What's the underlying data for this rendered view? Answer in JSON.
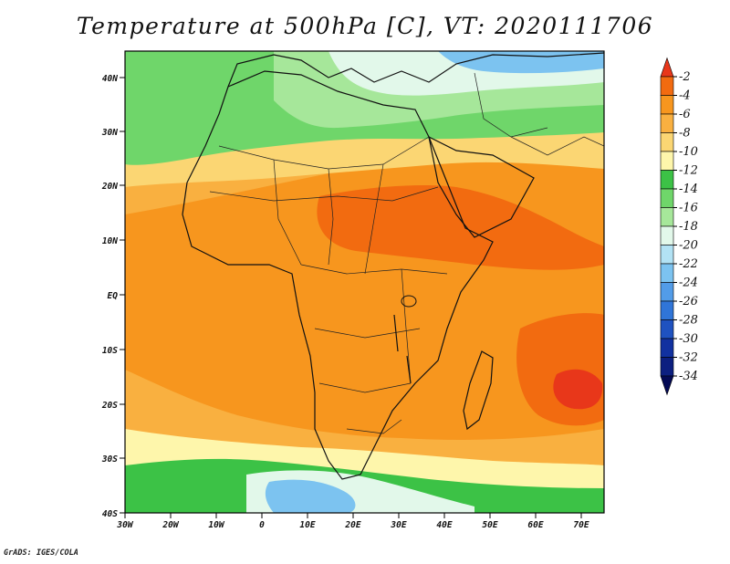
{
  "title": "Temperature at 500hPa [C], VT: 2020111706",
  "credit": "GrADS: IGES/COLA",
  "lat_ticks": [
    "40N",
    "30N",
    "20N",
    "10N",
    "EQ",
    "10S",
    "20S",
    "30S",
    "40S"
  ],
  "lon_ticks": [
    "30W",
    "20W",
    "10W",
    "0",
    "10E",
    "20E",
    "30E",
    "40E",
    "50E",
    "60E",
    "70E"
  ],
  "colorbar": {
    "labels": [
      "-2",
      "-4",
      "-6",
      "-8",
      "-10",
      "-12",
      "-14",
      "-16",
      "-18",
      "-20",
      "-22",
      "-24",
      "-26",
      "-28",
      "-30",
      "-32",
      "-34"
    ],
    "colors": [
      "#e8371a",
      "#f26b10",
      "#f7961e",
      "#f9b040",
      "#fbd673",
      "#fef6ab",
      "#3cc246",
      "#6fd66a",
      "#a6e79a",
      "#e2f8ea",
      "#b2e2f4",
      "#7cc3f0",
      "#529ce8",
      "#3075d8",
      "#1f52c0",
      "#1131a0",
      "#0c1f80",
      "#040a55"
    ]
  }
}
